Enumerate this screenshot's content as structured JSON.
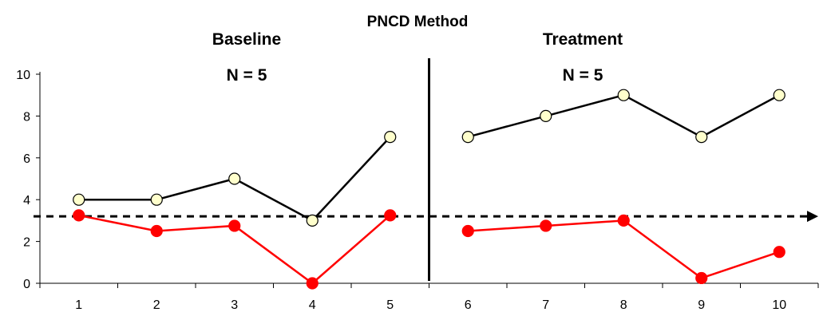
{
  "chart_data": {
    "type": "line",
    "title": "PNCD Method",
    "phases": [
      {
        "label": "Baseline",
        "n_label": "N = 5"
      },
      {
        "label": "Treatment",
        "n_label": "N = 5"
      }
    ],
    "x": [
      1,
      2,
      3,
      4,
      5,
      6,
      7,
      8,
      9,
      10
    ],
    "phase_split_after": 5,
    "ylim": [
      0,
      10
    ],
    "yticks": [
      0,
      2,
      4,
      6,
      8,
      10
    ],
    "grid": false,
    "threshold": 3.2,
    "series": [
      {
        "color": "#000000",
        "marker_fill": "#ffffcc",
        "values": [
          4,
          4,
          5,
          3,
          7,
          7,
          8,
          9,
          7,
          9
        ]
      },
      {
        "color": "#ff0000",
        "marker_fill": "#ff0000",
        "values": [
          3.25,
          2.5,
          2.75,
          0,
          3.25,
          2.5,
          2.75,
          3,
          0.25,
          1.5
        ]
      }
    ]
  }
}
